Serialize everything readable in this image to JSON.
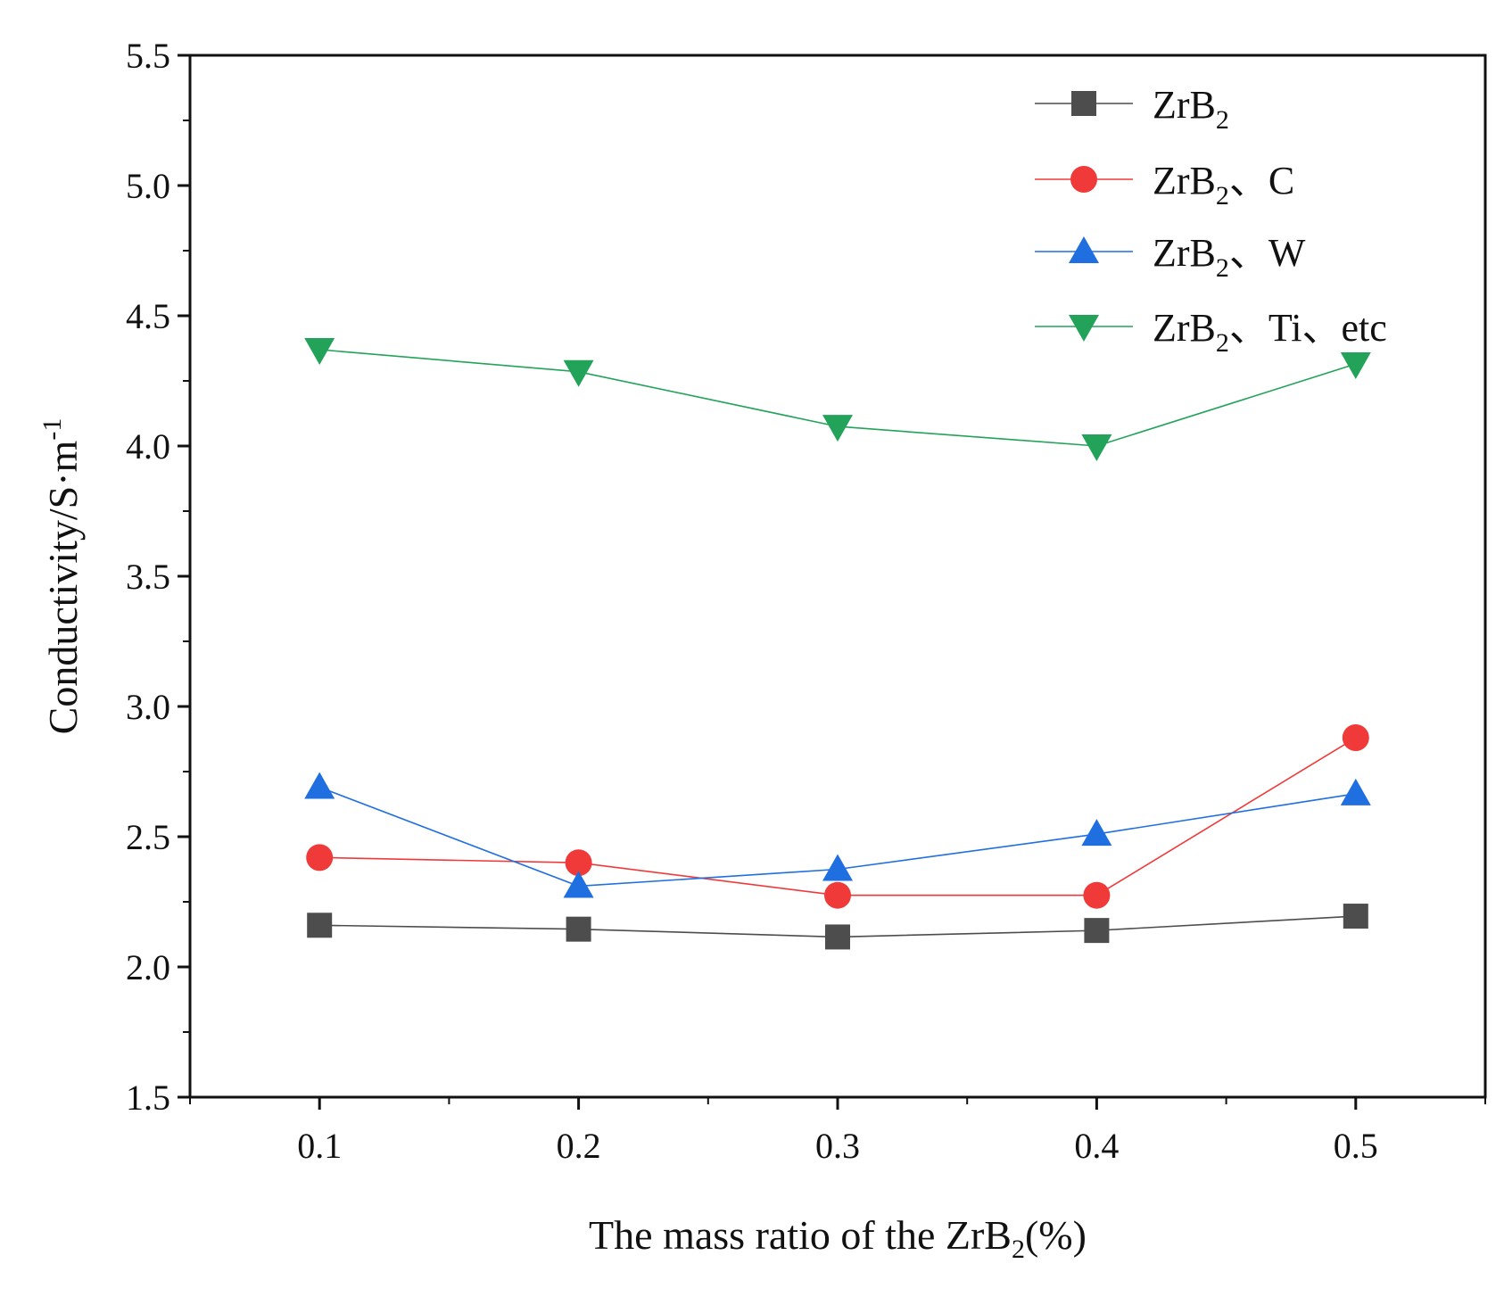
{
  "chart_data": {
    "type": "line",
    "x": [
      0.1,
      0.2,
      0.3,
      0.4,
      0.5
    ],
    "x_tick_labels": [
      "0.1",
      "0.2",
      "0.3",
      "0.4",
      "0.5"
    ],
    "xlim": [
      0.05,
      0.55
    ],
    "ylim": [
      1.5,
      5.5
    ],
    "y_ticks": [
      1.5,
      2.0,
      2.5,
      3.0,
      3.5,
      4.0,
      4.5,
      5.0,
      5.5
    ],
    "y_tick_labels": [
      "1.5",
      "2.0",
      "2.5",
      "3.0",
      "3.5",
      "4.0",
      "4.5",
      "5.0",
      "5.5"
    ],
    "xlabel": {
      "main": "The mass ratio of the ZrB",
      "sub": "2",
      "tail": "(%)"
    },
    "ylabel": {
      "main": "Conductivity/S·m",
      "sup": "-1"
    },
    "legend_position": "top-right",
    "grid": false,
    "series": [
      {
        "name": "ZrB2",
        "label_main": "ZrB",
        "label_sub": "2",
        "label_tail": "",
        "marker": "square",
        "color": "#4d4d4d",
        "values": [
          2.16,
          2.145,
          2.115,
          2.14,
          2.195
        ]
      },
      {
        "name": "ZrB2、C",
        "label_main": "ZrB",
        "label_sub": "2",
        "label_tail": "、C",
        "marker": "circle",
        "color": "#f03a3a",
        "values": [
          2.42,
          2.4,
          2.275,
          2.275,
          2.88
        ]
      },
      {
        "name": "ZrB2、W",
        "label_main": "ZrB",
        "label_sub": "2",
        "label_tail": "、W",
        "marker": "triangle-up",
        "color": "#1f6fe0",
        "values": [
          2.69,
          2.31,
          2.375,
          2.51,
          2.665
        ]
      },
      {
        "name": "ZrB2、Ti、etc",
        "label_main": "ZrB",
        "label_sub": "2",
        "label_tail": "、Ti、etc",
        "marker": "triangle-down",
        "color": "#23a35a",
        "values": [
          4.37,
          4.285,
          4.075,
          4.0,
          4.315
        ]
      }
    ]
  }
}
